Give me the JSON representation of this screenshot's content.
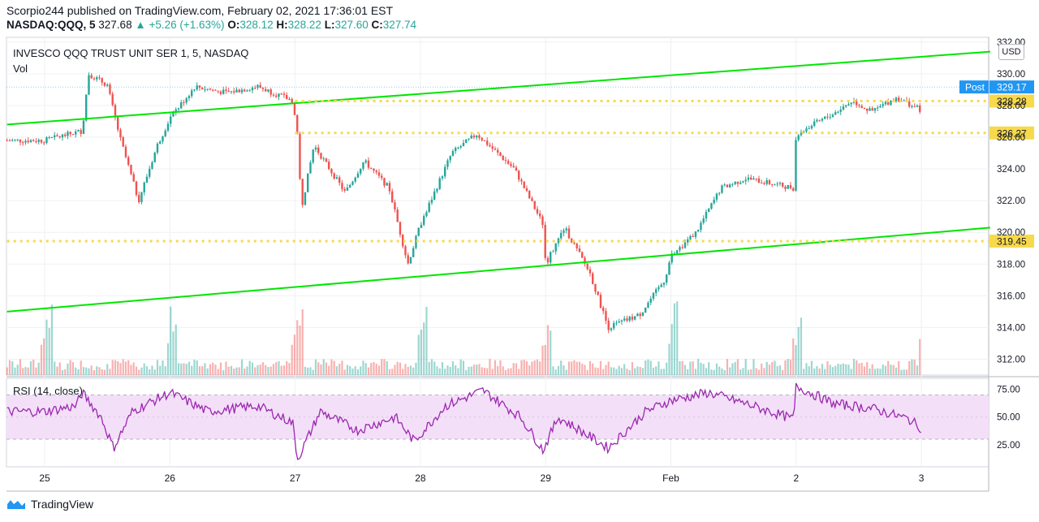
{
  "header": {
    "publisher_line": "Scorpio244 published on TradingView.com, February 02, 2021 17:36:01 EST",
    "symbol": "NASDAQ:QQQ, 5",
    "last": "327.68",
    "change": "+5.26 (+1.63%)",
    "ohlc": [
      {
        "label": "O:",
        "value": "328.12"
      },
      {
        "label": "H:",
        "value": "328.22"
      },
      {
        "label": "L:",
        "value": "327.60"
      },
      {
        "label": "C:",
        "value": "327.74"
      }
    ]
  },
  "main_panel": {
    "title": "INVESCO QQQ TRUST UNIT SER 1, 5, NASDAQ",
    "vol_label": "Vol",
    "currency": "USD"
  },
  "rsi_panel": {
    "title": "RSI (14, close)"
  },
  "footer": {
    "brand": "TradingView"
  },
  "colors": {
    "up": "#26a69a",
    "down": "#ef5350",
    "trendline": "#00e600",
    "level": "#f7d94c",
    "rsi": "#9c27b0",
    "rsi_band": "#f3e0f8",
    "post_tag": "#2196f3"
  },
  "chart_data": [
    {
      "type": "candlestick",
      "title": "INVESCO QQQ TRUST UNIT SER 1, 5, NASDAQ",
      "x_ticks": [
        "25",
        "26",
        "27",
        "28",
        "29",
        "Feb",
        "2",
        "3"
      ],
      "y_ticks": [
        312,
        314,
        316,
        318,
        320,
        322,
        324,
        326,
        328,
        330,
        332
      ],
      "y_tick_labels": [
        "312.00",
        "314.00",
        "316.00",
        "318.00",
        "320.00",
        "322.00",
        "324.00",
        "326.00",
        "328.00",
        "330.00",
        "332.00"
      ],
      "ylim": [
        311.0,
        332.3
      ],
      "price_path": [
        {
          "d": 0.0,
          "p": 325.8
        },
        {
          "d": 0.3,
          "p": 326.4
        },
        {
          "d": 0.35,
          "p": 330.0
        },
        {
          "d": 0.5,
          "p": 329.3
        },
        {
          "d": 0.6,
          "p": 326.0
        },
        {
          "d": 0.75,
          "p": 322.0
        },
        {
          "d": 0.9,
          "p": 325.5
        },
        {
          "d": 1.0,
          "p": 327.2
        },
        {
          "d": 1.2,
          "p": 329.2
        },
        {
          "d": 1.45,
          "p": 328.8
        },
        {
          "d": 1.7,
          "p": 329.2
        },
        {
          "d": 1.98,
          "p": 328.3
        },
        {
          "d": 2.02,
          "p": 326.0
        },
        {
          "d": 2.05,
          "p": 321.5
        },
        {
          "d": 2.15,
          "p": 325.5
        },
        {
          "d": 2.4,
          "p": 322.5
        },
        {
          "d": 2.55,
          "p": 324.5
        },
        {
          "d": 2.75,
          "p": 322.8
        },
        {
          "d": 2.9,
          "p": 318.0
        },
        {
          "d": 3.0,
          "p": 320.5
        },
        {
          "d": 3.25,
          "p": 325.0
        },
        {
          "d": 3.45,
          "p": 326.2
        },
        {
          "d": 3.75,
          "p": 324.0
        },
        {
          "d": 3.98,
          "p": 320.5
        },
        {
          "d": 4.0,
          "p": 318.0
        },
        {
          "d": 4.15,
          "p": 320.3
        },
        {
          "d": 4.35,
          "p": 317.5
        },
        {
          "d": 4.5,
          "p": 314.0
        },
        {
          "d": 4.75,
          "p": 314.8
        },
        {
          "d": 4.95,
          "p": 317.0
        },
        {
          "d": 5.0,
          "p": 318.5
        },
        {
          "d": 5.2,
          "p": 320.0
        },
        {
          "d": 5.4,
          "p": 322.8
        },
        {
          "d": 5.6,
          "p": 323.4
        },
        {
          "d": 5.98,
          "p": 322.8
        },
        {
          "d": 6.0,
          "p": 326.2
        },
        {
          "d": 6.3,
          "p": 327.5
        },
        {
          "d": 6.45,
          "p": 328.3
        },
        {
          "d": 6.6,
          "p": 327.6
        },
        {
          "d": 6.8,
          "p": 328.5
        },
        {
          "d": 7.0,
          "p": 327.7
        }
      ],
      "horizontal_levels": [
        {
          "label": "328.28",
          "value": 328.28,
          "from_day": 2.0
        },
        {
          "label": "326.27",
          "value": 326.27,
          "from_day": 2.0
        },
        {
          "label": "319.45",
          "value": 319.45,
          "from_day": -0.3
        }
      ],
      "post_marker": {
        "label": "Post",
        "value_label": "329.17",
        "value": 329.17
      },
      "trendlines": [
        {
          "from": {
            "d": -0.3,
            "p": 326.8
          },
          "to": {
            "d": 7.55,
            "p": 331.4
          }
        },
        {
          "from": {
            "d": -0.3,
            "p": 315.0
          },
          "to": {
            "d": 7.55,
            "p": 320.3
          }
        }
      ]
    },
    {
      "type": "line",
      "title": "RSI (14, close)",
      "y_ticks": [
        25,
        50,
        75
      ],
      "y_tick_labels": [
        "25.00",
        "50.00",
        "75.00"
      ],
      "ylim": [
        5,
        85
      ],
      "band": [
        30,
        70
      ],
      "rsi_path": [
        {
          "d": 0.0,
          "r": 55
        },
        {
          "d": 0.25,
          "r": 60
        },
        {
          "d": 0.3,
          "r": 72
        },
        {
          "d": 0.45,
          "r": 50
        },
        {
          "d": 0.55,
          "r": 22
        },
        {
          "d": 0.7,
          "r": 55
        },
        {
          "d": 1.0,
          "r": 72
        },
        {
          "d": 1.3,
          "r": 55
        },
        {
          "d": 1.7,
          "r": 60
        },
        {
          "d": 1.98,
          "r": 45
        },
        {
          "d": 2.02,
          "r": 12
        },
        {
          "d": 2.2,
          "r": 55
        },
        {
          "d": 2.5,
          "r": 38
        },
        {
          "d": 2.8,
          "r": 50
        },
        {
          "d": 2.95,
          "r": 28
        },
        {
          "d": 3.2,
          "r": 60
        },
        {
          "d": 3.5,
          "r": 74
        },
        {
          "d": 3.8,
          "r": 50
        },
        {
          "d": 3.98,
          "r": 20
        },
        {
          "d": 4.1,
          "r": 50
        },
        {
          "d": 4.5,
          "r": 22
        },
        {
          "d": 4.8,
          "r": 55
        },
        {
          "d": 5.0,
          "r": 65
        },
        {
          "d": 5.3,
          "r": 72
        },
        {
          "d": 5.6,
          "r": 62
        },
        {
          "d": 5.98,
          "r": 48
        },
        {
          "d": 6.0,
          "r": 78
        },
        {
          "d": 6.3,
          "r": 62
        },
        {
          "d": 6.6,
          "r": 58
        },
        {
          "d": 6.9,
          "r": 48
        },
        {
          "d": 7.0,
          "r": 40
        }
      ]
    }
  ]
}
